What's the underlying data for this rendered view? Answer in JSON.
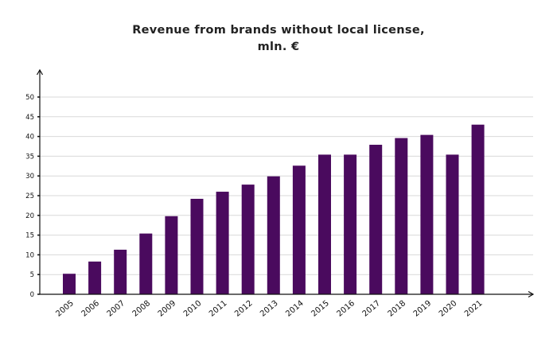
{
  "chart_data": {
    "type": "bar",
    "title_line1": "Revenue from brands without local license,",
    "title_line2": "mln. €",
    "xlabel": "",
    "ylabel": "",
    "categories": [
      "2005",
      "2006",
      "2007",
      "2008",
      "2009",
      "2010",
      "2011",
      "2012",
      "2013",
      "2014",
      "2015",
      "2016",
      "2017",
      "2018",
      "2019",
      "2020",
      "2021"
    ],
    "values": [
      5.2,
      8.3,
      11.3,
      15.4,
      19.8,
      24.2,
      26.0,
      27.8,
      29.9,
      32.6,
      35.4,
      35.4,
      37.9,
      39.6,
      40.4,
      35.4,
      43.0
    ],
    "ylim": [
      0,
      50
    ],
    "yticks": [
      "0",
      "5",
      "10",
      "15",
      "20",
      "25",
      "30",
      "35",
      "40",
      "45",
      "50"
    ],
    "grid": true,
    "bar_color": "#4a0a5e",
    "grid_color": "#d9d9d9"
  }
}
